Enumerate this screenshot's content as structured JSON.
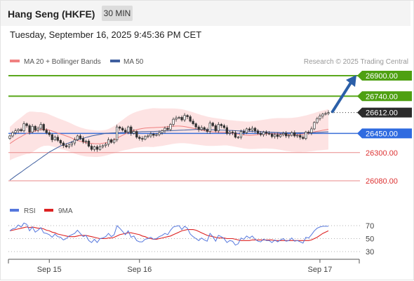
{
  "header": {
    "title": "Hang Seng (HKFE)",
    "timeframe": "30 MIN"
  },
  "datetime": "Tuesday, September 16, 2025 9:45:36 PM CET",
  "chart_data": [
    {
      "type": "candlestick",
      "legend": [
        {
          "label": "MA 20 + Bollinger Bands",
          "color": "#f08080"
        },
        {
          "label": "MA 50",
          "color": "#3f5f9f"
        }
      ],
      "credit": "Research © 2025 Trading Central",
      "ylim": [
        26000,
        26940
      ],
      "levels": [
        {
          "value": 26900,
          "label": "26900.00",
          "kind": "resistance"
        },
        {
          "value": 26740,
          "label": "26740.00",
          "kind": "resistance"
        },
        {
          "value": 26612,
          "label": "26612.00",
          "kind": "last"
        },
        {
          "value": 26450,
          "label": "26450.00",
          "kind": "pivot"
        },
        {
          "value": 26300,
          "label": "26300.00",
          "kind": "support"
        },
        {
          "value": 26080,
          "label": "26080.00",
          "kind": "support"
        }
      ],
      "close": [
        26430,
        26455,
        26470,
        26480,
        26470,
        26525,
        26510,
        26460,
        26505,
        26475,
        26490,
        26520,
        26475,
        26455,
        26440,
        26400,
        26420,
        26395,
        26375,
        26355,
        26345,
        26360,
        26375,
        26400,
        26430,
        26410,
        26385,
        26390,
        26350,
        26325,
        26345,
        26325,
        26345,
        26355,
        26365,
        26400,
        26380,
        26400,
        26500,
        26490,
        26475,
        26460,
        26500,
        26450,
        26465,
        26420,
        26410,
        26405,
        26425,
        26430,
        26445,
        26435,
        26440,
        26455,
        26470,
        26490,
        26480,
        26520,
        26560,
        26570,
        26575,
        26555,
        26590,
        26580,
        26545,
        26525,
        26500,
        26480,
        26495,
        26480,
        26465,
        26530,
        26510,
        26470,
        26520,
        26510,
        26495,
        26450,
        26460,
        26455,
        26420,
        26420,
        26465,
        26455,
        26485,
        26475,
        26490,
        26470,
        26450,
        26440,
        26460,
        26450,
        26445,
        26425,
        26440,
        26425,
        26440,
        26450,
        26430,
        26435,
        26455,
        26430,
        26435,
        26420,
        26410,
        26460,
        26455,
        26485,
        26535,
        26565,
        26585,
        26600,
        26605,
        26612
      ],
      "ma20": [
        26370,
        26385,
        26400,
        26413,
        26425,
        26438,
        26450,
        26455,
        26462,
        26468,
        26474,
        26480,
        26482,
        26480,
        26476,
        26468,
        26461,
        26452,
        26445,
        26438,
        26430,
        26422,
        26413,
        26403,
        26395,
        26388,
        26382,
        26377,
        26374,
        26372,
        26370,
        26369,
        26370,
        26373,
        26377,
        26383,
        26392,
        26401,
        26412,
        26424,
        26435,
        26446,
        26456,
        26465,
        26473,
        26479,
        26484,
        26488,
        26491,
        26493,
        26494,
        26495,
        26496,
        26497,
        26498,
        26500,
        26502,
        26504,
        26506,
        26507,
        26507,
        26506,
        26503,
        26499,
        26495,
        26490,
        26485,
        26480,
        26475,
        26471,
        26467,
        26464,
        26462,
        26461,
        26460,
        26459,
        26458,
        26456,
        26453,
        26450,
        26447,
        26444,
        26441,
        26438,
        26436,
        26435,
        26436,
        26438,
        26440,
        26442,
        26444,
        26446,
        26447,
        26448,
        26448,
        26447,
        26445,
        26443,
        26441,
        26440,
        26439,
        26439,
        26440,
        26442,
        26445,
        26448,
        26452,
        26456,
        26461,
        26466,
        26470,
        26474,
        26478,
        26482
      ],
      "ma50": [
        26085,
        26101,
        26117,
        26133,
        26148,
        26164,
        26180,
        26195,
        26211,
        26226,
        26242,
        26257,
        26273,
        26288,
        26304,
        26316,
        26328,
        26340,
        26352,
        26360,
        26368,
        26376,
        26384,
        26392,
        26400,
        26406,
        26412,
        26418,
        26424,
        26430,
        26434,
        26438,
        26442,
        26446,
        26450,
        26452,
        26453,
        26454,
        26455,
        26456,
        26457,
        26458,
        26459,
        26460,
        26461,
        26462,
        26462,
        26463,
        26463,
        26464,
        26464,
        26465,
        26466,
        26467,
        26468,
        26469,
        26470,
        26471,
        26472,
        26473,
        26474,
        26475,
        26476,
        26477,
        26478,
        26479,
        26480,
        26480,
        26480,
        26480,
        26480,
        26479,
        26478,
        26478,
        26477,
        26476,
        26475,
        26474,
        26473,
        26472,
        26471,
        26470,
        26469,
        26468,
        26467,
        26466,
        26465,
        26464,
        26464,
        26463,
        26462,
        26461,
        26460,
        26459,
        26458,
        26457,
        26456,
        26455,
        26455,
        26455,
        26455,
        26455,
        26455,
        26455,
        26455,
        26455,
        26456,
        26456,
        26457,
        26458,
        26459,
        26460,
        26461,
        26462
      ],
      "bb_width": [
        130,
        135,
        140,
        145,
        150,
        155,
        160,
        165,
        158,
        150,
        142,
        136,
        130,
        126,
        122,
        120,
        118,
        117,
        116,
        115,
        114,
        113,
        112,
        111,
        110,
        109,
        108,
        107,
        106,
        105,
        104,
        103,
        102,
        101,
        100,
        101,
        103,
        106,
        110,
        115,
        120,
        126,
        132,
        136,
        138,
        140,
        142,
        144,
        146,
        148,
        150,
        152,
        150,
        148,
        146,
        144,
        142,
        140,
        138,
        136,
        134,
        132,
        130,
        128,
        126,
        124,
        122,
        120,
        118,
        116,
        114,
        112,
        110,
        108,
        106,
        104,
        102,
        100,
        100,
        101,
        102,
        103,
        104,
        105,
        106,
        107,
        108,
        109,
        110,
        111,
        112,
        114,
        116,
        118,
        120,
        122,
        124,
        126,
        128,
        130,
        132,
        134,
        136,
        138,
        140,
        142,
        144,
        146,
        148,
        150,
        152,
        154,
        156,
        158
      ],
      "projection": {
        "from": 26612,
        "to": 26900
      }
    },
    {
      "type": "line",
      "series": [
        {
          "name": "RSI",
          "color": "#5577dd",
          "values": [
            62,
            65,
            66,
            71,
            68,
            74,
            72,
            62,
            68,
            60,
            63,
            67,
            59,
            58,
            56,
            52,
            57,
            53,
            52,
            48,
            50,
            54,
            56,
            58,
            63,
            58,
            53,
            55,
            47,
            44,
            49,
            44,
            50,
            51,
            53,
            58,
            53,
            56,
            70,
            66,
            61,
            56,
            62,
            52,
            54,
            47,
            45,
            45,
            49,
            50,
            52,
            49,
            50,
            53,
            55,
            58,
            56,
            63,
            68,
            69,
            70,
            64,
            69,
            66,
            57,
            53,
            50,
            47,
            51,
            48,
            46,
            58,
            53,
            46,
            55,
            53,
            50,
            44,
            47,
            46,
            40,
            42,
            51,
            49,
            54,
            51,
            54,
            49,
            46,
            45,
            49,
            47,
            47,
            44,
            48,
            45,
            48,
            50,
            46,
            47,
            51,
            46,
            47,
            45,
            43,
            52,
            51,
            56,
            62,
            66,
            68,
            69,
            69,
            69
          ]
        },
        {
          "name": "9MA",
          "color": "#dd2222",
          "values": [
            62,
            63,
            64,
            65,
            66,
            67,
            68,
            67,
            68,
            67,
            66,
            66,
            65,
            63,
            62,
            60,
            59,
            57,
            56,
            55,
            54,
            53,
            53,
            53,
            54,
            55,
            55,
            55,
            54,
            53,
            52,
            51,
            50,
            50,
            50,
            51,
            51,
            52,
            54,
            56,
            57,
            58,
            59,
            59,
            58,
            57,
            56,
            54,
            53,
            51,
            50,
            49,
            49,
            50,
            51,
            52,
            53,
            54,
            56,
            58,
            60,
            62,
            63,
            64,
            64,
            64,
            63,
            61,
            59,
            57,
            55,
            54,
            53,
            52,
            51,
            51,
            51,
            50,
            50,
            50,
            49,
            48,
            47,
            47,
            47,
            47,
            48,
            48,
            48,
            48,
            48,
            48,
            48,
            48,
            47,
            47,
            47,
            47,
            47,
            47,
            47,
            47,
            47,
            47,
            47,
            47,
            47,
            48,
            50,
            52,
            55,
            58,
            60,
            62
          ]
        }
      ],
      "ylim": [
        20,
        85
      ],
      "ticks": [
        "70",
        "50",
        "30"
      ],
      "tick_values": [
        70,
        50,
        30
      ]
    }
  ],
  "x_axis": {
    "labels": [
      "Sep 15",
      "Sep 16",
      "Sep 17"
    ],
    "positions": [
      14,
      46,
      110
    ]
  }
}
